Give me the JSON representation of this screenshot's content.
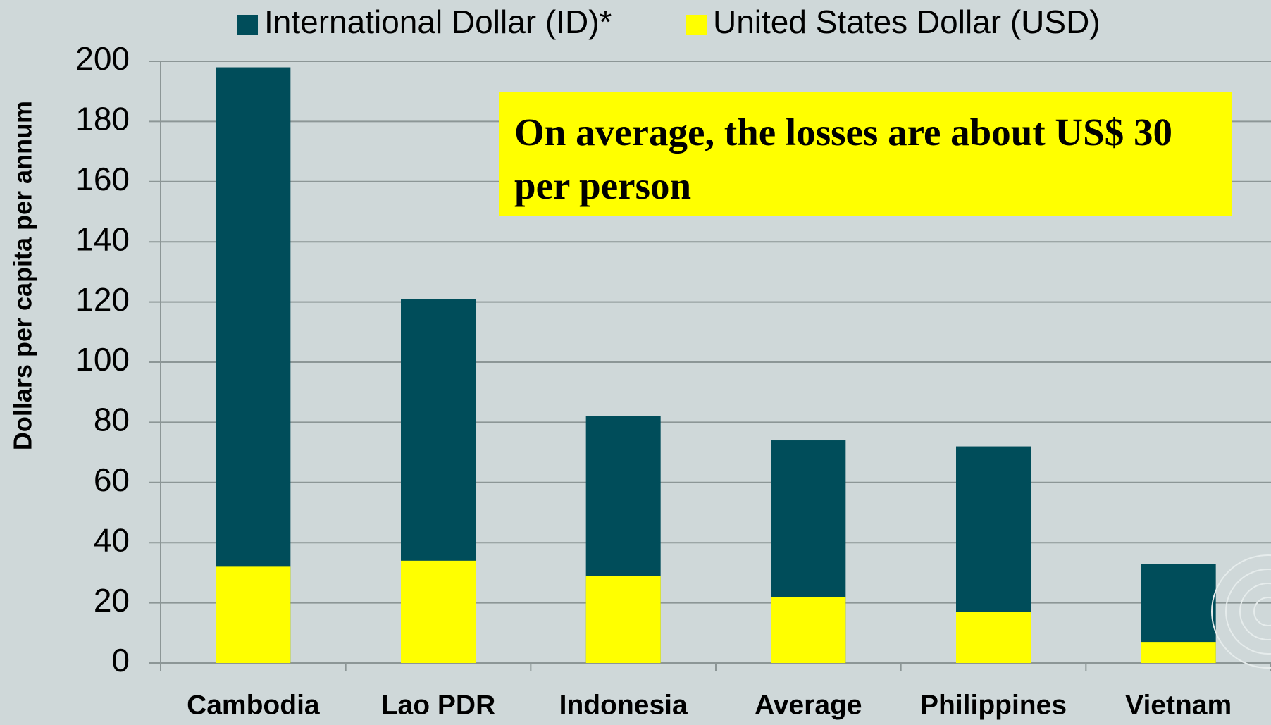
{
  "chart_data": {
    "type": "bar",
    "y_label": "Dollars per capita per annum",
    "annotation": "On average, the losses are about US$ 30 per person",
    "categories": [
      "Cambodia",
      "Lao PDR",
      "Indonesia",
      "Average",
      "Philippines",
      "Vietnam"
    ],
    "series": [
      {
        "name": "International Dollar (ID)*",
        "color": "#004d5a",
        "values": [
          198,
          121,
          82,
          74,
          72,
          33
        ]
      },
      {
        "name": "United States Dollar (USD)",
        "color": "#ffff00",
        "values": [
          32,
          34,
          29,
          22,
          17,
          7
        ]
      }
    ],
    "ylim": [
      0,
      200
    ],
    "yticks": [
      0,
      20,
      40,
      60,
      80,
      100,
      120,
      140,
      160,
      180,
      200
    ],
    "grid": true,
    "legend": "top"
  }
}
